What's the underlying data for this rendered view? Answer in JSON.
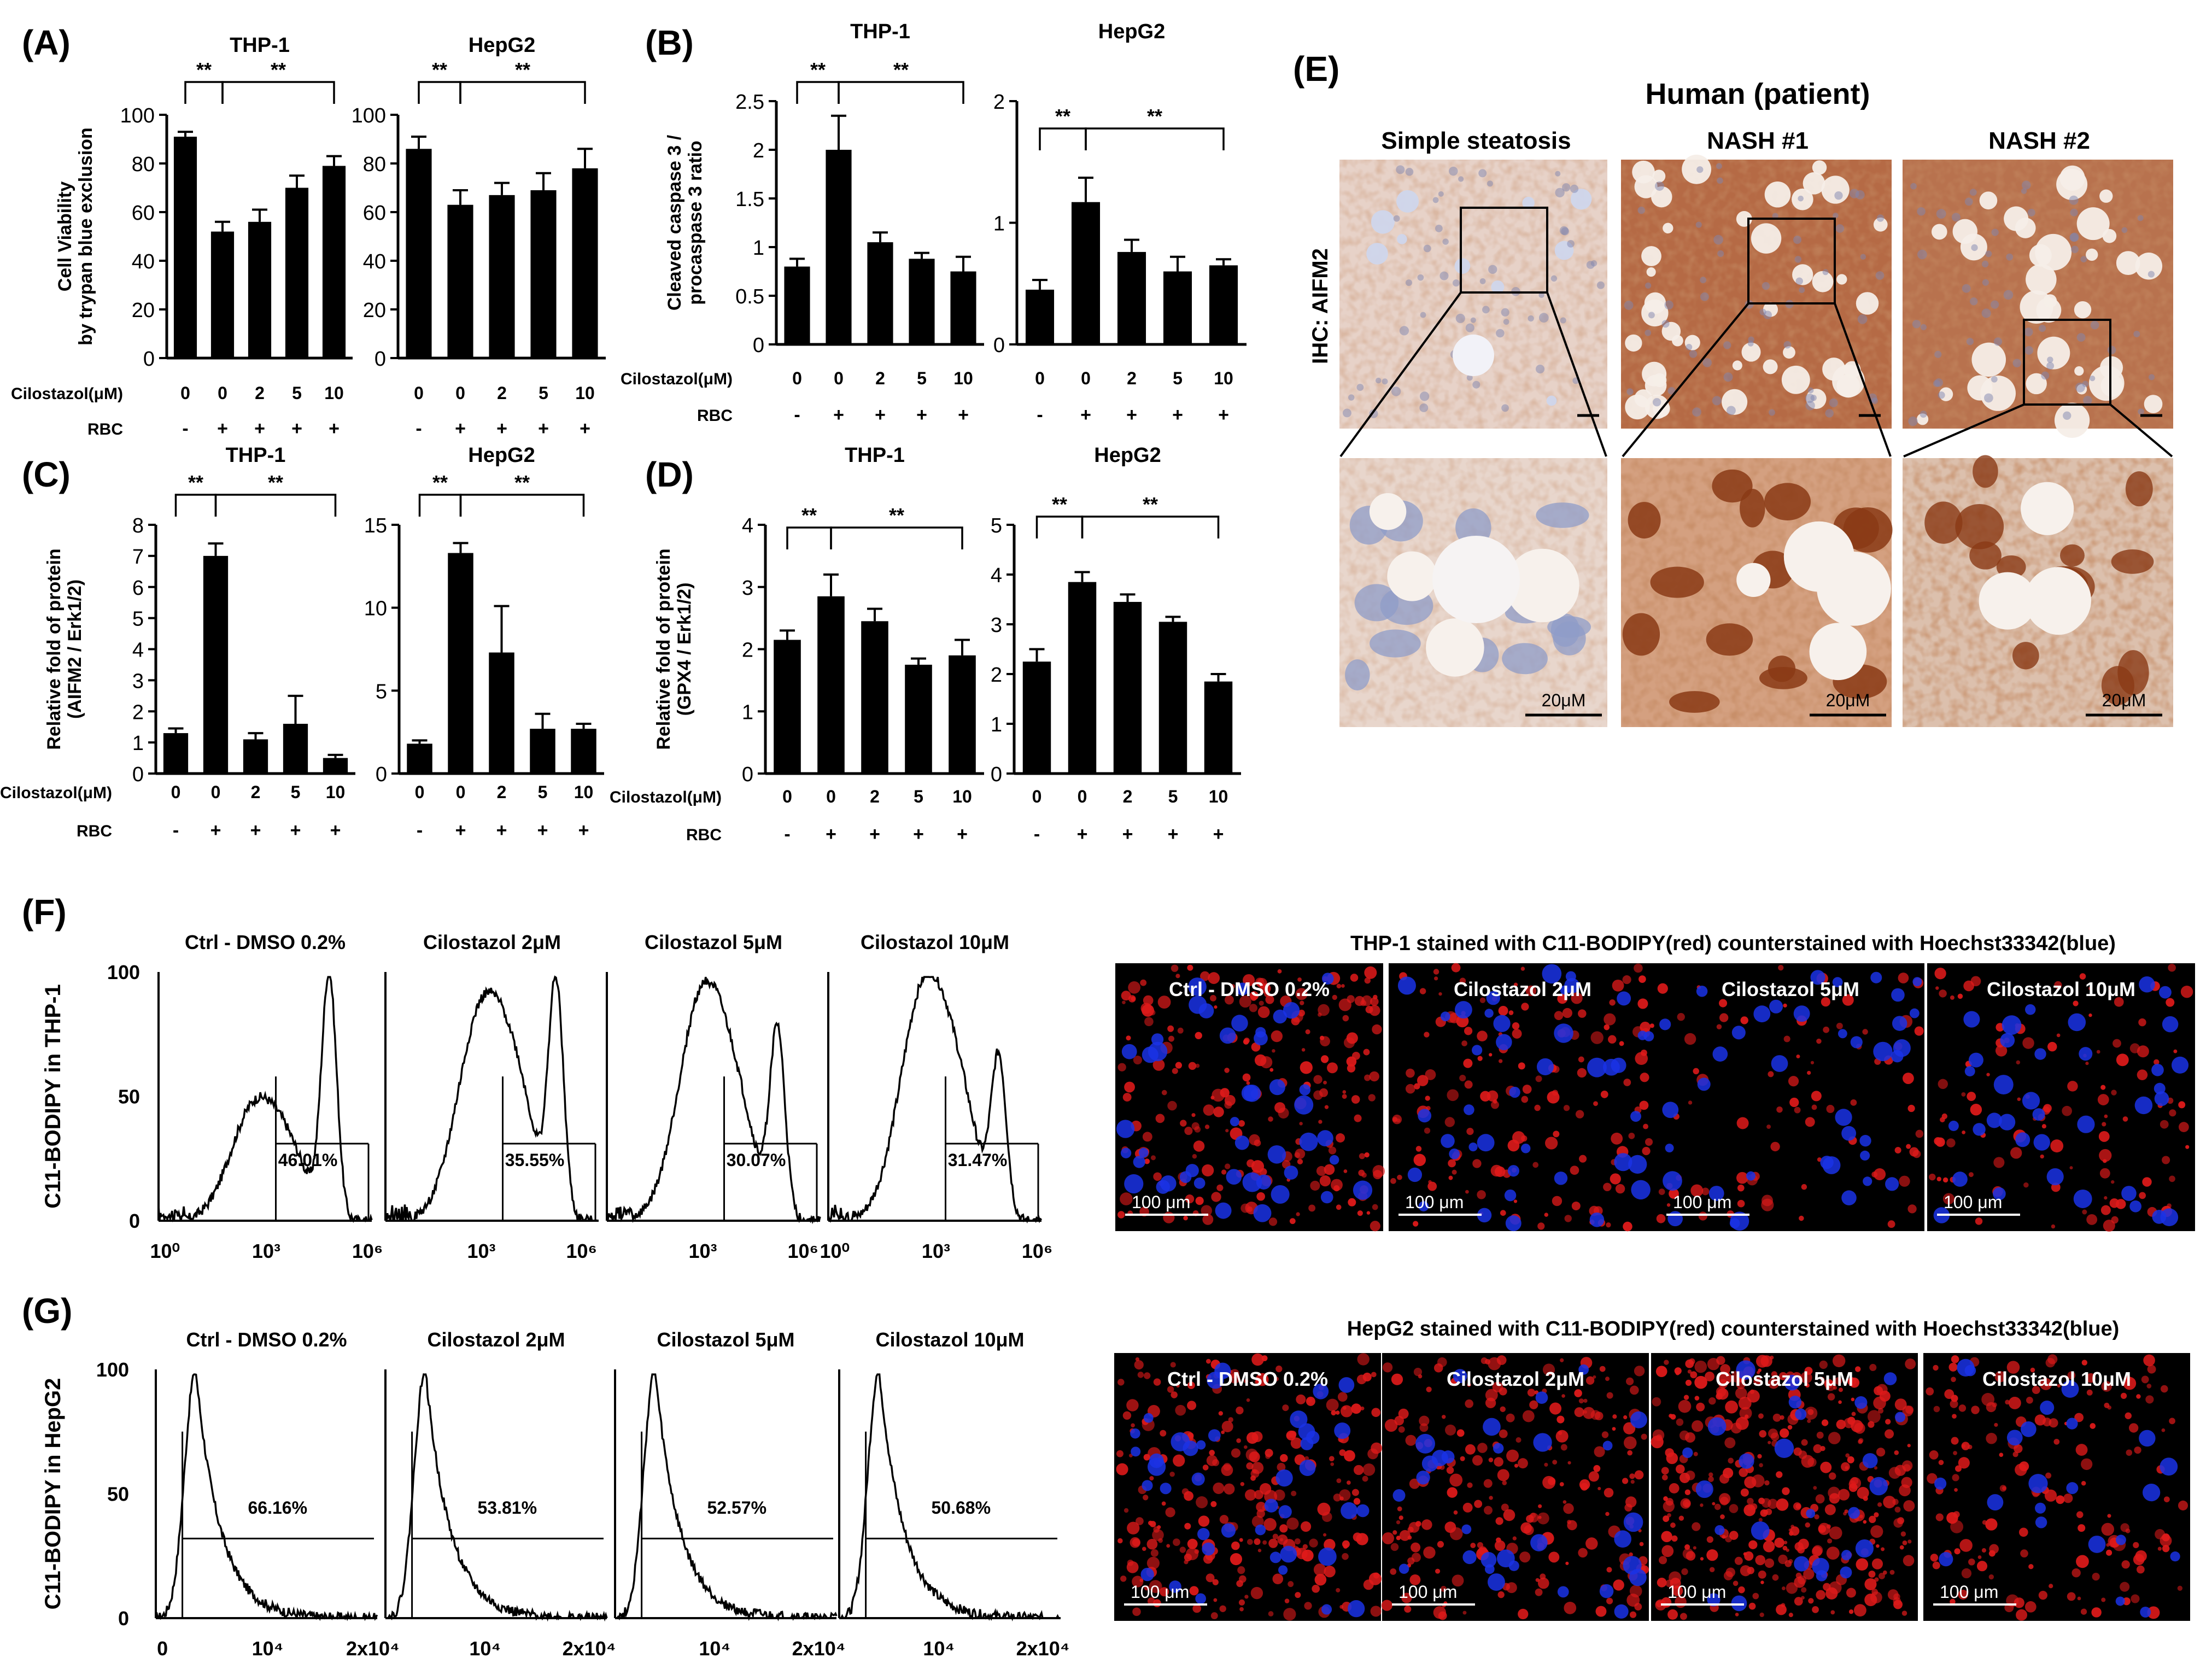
{
  "figure": {
    "star": "**",
    "cilostazol_label": "Cilostazol(μM)",
    "rbc_label": "RBC",
    "doses": [
      "0",
      "0",
      "2",
      "5",
      "10"
    ],
    "rbc_signs": [
      "-",
      "+",
      "+",
      "+",
      "+"
    ],
    "colors": {
      "bar": "#000000",
      "ihc_brown": "#a0522d",
      "dapi_blue": "#1a33e6",
      "bodipy_red": "#e01a1a"
    }
  },
  "panel_labels": {
    "A": "(A)",
    "B": "(B)",
    "C": "(C)",
    "D": "(D)",
    "E": "(E)",
    "F": "(F)",
    "G": "(G)"
  },
  "chart_data": [
    {
      "id": "A1",
      "type": "bar",
      "title": "THP-1",
      "ylabel": "Cell Viability by trypan blue exclusion",
      "categories": [
        "0",
        "0",
        "2",
        "5",
        "10"
      ],
      "values": [
        91,
        52,
        56,
        70,
        79
      ],
      "errors": [
        2,
        4,
        5,
        5,
        4
      ],
      "ylim": [
        0,
        100
      ],
      "yticks": [
        "0",
        "20",
        "40",
        "60",
        "80",
        "100"
      ]
    },
    {
      "id": "A2",
      "type": "bar",
      "title": "HepG2",
      "ylabel": "",
      "categories": [
        "0",
        "0",
        "2",
        "5",
        "10"
      ],
      "values": [
        86,
        63,
        67,
        69,
        78
      ],
      "errors": [
        5,
        6,
        5,
        7,
        8
      ],
      "ylim": [
        0,
        100
      ],
      "yticks": [
        "0",
        "20",
        "40",
        "60",
        "80",
        "100"
      ]
    },
    {
      "id": "B1",
      "type": "bar",
      "title": "THP-1",
      "ylabel": "Cleaved caspase 3 / procaspase 3 ratio",
      "categories": [
        "0",
        "0",
        "2",
        "5",
        "10"
      ],
      "values": [
        0.8,
        2.0,
        1.05,
        0.88,
        0.75
      ],
      "errors": [
        0.08,
        0.35,
        0.1,
        0.06,
        0.15
      ],
      "ylim": [
        0,
        2.5
      ],
      "yticks": [
        "0",
        "0.5",
        "1",
        "1.5",
        "2",
        "2.5"
      ]
    },
    {
      "id": "B2",
      "type": "bar",
      "title": "HepG2",
      "ylabel": "",
      "categories": [
        "0",
        "0",
        "2",
        "5",
        "10"
      ],
      "values": [
        0.45,
        1.17,
        0.76,
        0.6,
        0.65
      ],
      "errors": [
        0.08,
        0.2,
        0.1,
        0.12,
        0.05
      ],
      "ylim": [
        0,
        2
      ],
      "yticks": [
        "0",
        "1",
        "2"
      ]
    },
    {
      "id": "C1",
      "type": "bar",
      "title": "THP-1",
      "ylabel": "Relative fold of protein (AIFM2 / Erk1/2)",
      "categories": [
        "0",
        "0",
        "2",
        "5",
        "10"
      ],
      "values": [
        1.3,
        7.0,
        1.1,
        1.6,
        0.5
      ],
      "errors": [
        0.15,
        0.4,
        0.2,
        0.9,
        0.1
      ],
      "ylim": [
        0,
        8
      ],
      "yticks": [
        "0",
        "1",
        "2",
        "3",
        "4",
        "5",
        "6",
        "7",
        "8"
      ]
    },
    {
      "id": "C2",
      "type": "bar",
      "title": "HepG2",
      "ylabel": "",
      "categories": [
        "0",
        "0",
        "2",
        "5",
        "10"
      ],
      "values": [
        1.8,
        13.3,
        7.3,
        2.7,
        2.7
      ],
      "errors": [
        0.2,
        0.6,
        2.8,
        0.9,
        0.3
      ],
      "ylim": [
        0,
        15
      ],
      "yticks": [
        "0",
        "5",
        "10",
        "15"
      ]
    },
    {
      "id": "D1",
      "type": "bar",
      "title": "THP-1",
      "ylabel": "Relative fold of protein (GPX4 / Erk1/2)",
      "categories": [
        "0",
        "0",
        "2",
        "5",
        "10"
      ],
      "values": [
        2.15,
        2.85,
        2.45,
        1.75,
        1.9
      ],
      "errors": [
        0.15,
        0.35,
        0.2,
        0.1,
        0.25
      ],
      "ylim": [
        0,
        4
      ],
      "yticks": [
        "0",
        "1",
        "2",
        "3",
        "4"
      ]
    },
    {
      "id": "D2",
      "type": "bar",
      "title": "HepG2",
      "ylabel": "",
      "categories": [
        "0",
        "0",
        "2",
        "5",
        "10"
      ],
      "values": [
        2.25,
        3.85,
        3.45,
        3.05,
        1.85
      ],
      "errors": [
        0.25,
        0.2,
        0.15,
        0.1,
        0.15
      ],
      "ylim": [
        0,
        5
      ],
      "yticks": [
        "0",
        "1",
        "2",
        "3",
        "4",
        "5"
      ]
    },
    {
      "id": "F",
      "type": "histogram",
      "ylabel": "C11-BODIPY in THP-1",
      "yticks": [
        "0",
        "50",
        "100"
      ],
      "panels": [
        {
          "title": "Ctrl - DMSO 0.2%",
          "percent": "46.01%",
          "xticks": [
            "10⁰",
            "10³",
            "10⁶"
          ]
        },
        {
          "title": "Cilostazol 2μM",
          "percent": "35.55%",
          "xticks": [
            "10³",
            "10⁶"
          ]
        },
        {
          "title": "Cilostazol 5μM",
          "percent": "30.07%",
          "xticks": [
            "10³",
            "10⁶"
          ]
        },
        {
          "title": "Cilostazol 10μM",
          "percent": "31.47%",
          "xticks": [
            "10⁰",
            "10³",
            "10⁶"
          ]
        }
      ]
    },
    {
      "id": "G",
      "type": "histogram",
      "ylabel": "C11-BODIPY in HepG2",
      "yticks": [
        "0",
        "50",
        "100"
      ],
      "panels": [
        {
          "title": "Ctrl - DMSO 0.2%",
          "percent": "66.16%",
          "xticks": [
            "0",
            "10⁴",
            "2x10⁴"
          ]
        },
        {
          "title": "Cilostazol 2μM",
          "percent": "53.81%",
          "xticks": [
            "10⁴",
            "2x10⁴"
          ]
        },
        {
          "title": "Cilostazol 5μM",
          "percent": "52.57%",
          "xticks": [
            "10⁴",
            "2x10⁴"
          ]
        },
        {
          "title": "Cilostazol 10μM",
          "percent": "50.68%",
          "xticks": [
            "10⁴",
            "2x10⁴"
          ]
        }
      ]
    }
  ],
  "panel_E": {
    "title": "Human (patient)",
    "ylabel": "IHC: AIFM2",
    "columns": [
      "Simple steatosis",
      "NASH #1",
      "NASH #2"
    ],
    "scale": "20μM"
  },
  "micro_F": {
    "title": "THP-1 stained with C11-BODIPY(red) counterstained with Hoechst33342(blue)",
    "labels": [
      "Ctrl - DMSO 0.2%",
      "Cilostazol 2μM",
      "Cilostazol 5μM",
      "Cilostazol 10μM"
    ],
    "scale": "100 μm"
  },
  "micro_G": {
    "title": "HepG2 stained with C11-BODIPY(red) counterstained with Hoechst33342(blue)",
    "labels": [
      "Ctrl - DMSO 0.2%",
      "Cilostazol 2μM",
      "Cilostazol 5μM",
      "Cilostazol 10μM"
    ],
    "scale": "100 μm"
  }
}
